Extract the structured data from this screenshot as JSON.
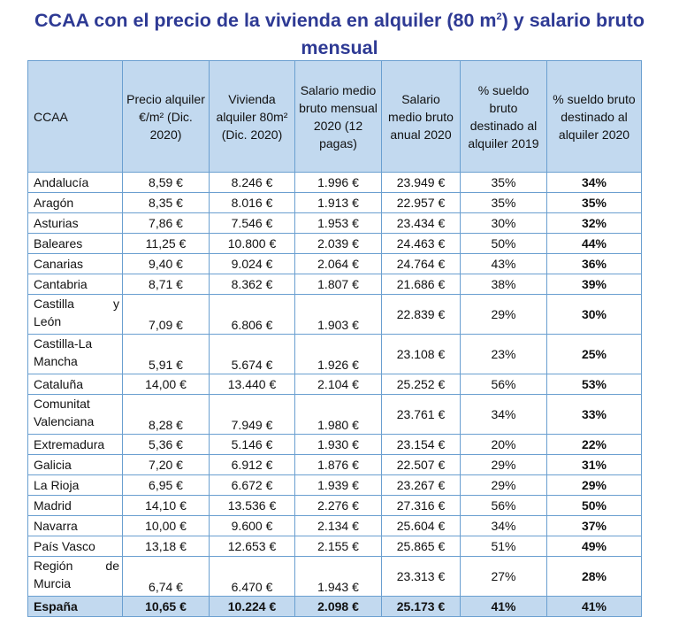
{
  "title": {
    "part1": "CCAA con el precio de la vivienda en alquiler (80 m",
    "sup": "2",
    "part2": ") y salario bruto mensual"
  },
  "table": {
    "headers": [
      "CCAA",
      "Precio alquiler €/m² (Dic. 2020)",
      "Vivienda alquiler 80m² (Dic. 2020)",
      "Salario medio bruto mensual 2020 (12 pagas)",
      "Salario medio bruto anual 2020",
      "% sueldo bruto destinado al alquiler 2019",
      "% sueldo bruto destinado al alquiler 2020"
    ],
    "rows": [
      {
        "ccaa": "Andalucía",
        "precio": "8,59 €",
        "vivienda": "8.246 €",
        "mensual": "1.996 €",
        "anual": "23.949 €",
        "p2019": "35%",
        "p2020": "34%"
      },
      {
        "ccaa": "Aragón",
        "precio": "8,35 €",
        "vivienda": "8.016 €",
        "mensual": "1.913 €",
        "anual": "22.957 €",
        "p2019": "35%",
        "p2020": "35%"
      },
      {
        "ccaa": "Asturias",
        "precio": "7,86 €",
        "vivienda": "7.546 €",
        "mensual": "1.953 €",
        "anual": "23.434 €",
        "p2019": "30%",
        "p2020": "32%"
      },
      {
        "ccaa": "Baleares",
        "precio": "11,25 €",
        "vivienda": "10.800 €",
        "mensual": "2.039 €",
        "anual": "24.463 €",
        "p2019": "50%",
        "p2020": "44%"
      },
      {
        "ccaa": "Canarias",
        "precio": "9,40 €",
        "vivienda": "9.024 €",
        "mensual": "2.064 €",
        "anual": "24.764 €",
        "p2019": "43%",
        "p2020": "36%"
      },
      {
        "ccaa": "Cantabria",
        "precio": "8,71 €",
        "vivienda": "8.362 €",
        "mensual": "1.807 €",
        "anual": "21.686 €",
        "p2019": "38%",
        "p2020": "39%"
      },
      {
        "ccaa_l1a": "Castilla",
        "ccaa_l1b": "y",
        "ccaa_l2": "León",
        "precio": "7,09 €",
        "vivienda": "6.806 €",
        "mensual": "1.903 €",
        "anual": "22.839 €",
        "p2019": "29%",
        "p2020": "30%"
      },
      {
        "ccaa_l1": "Castilla-La",
        "ccaa_l2": "Mancha",
        "precio": "5,91 €",
        "vivienda": "5.674 €",
        "mensual": "1.926 €",
        "anual": "23.108 €",
        "p2019": "23%",
        "p2020": "25%"
      },
      {
        "ccaa": "Cataluña",
        "precio": "14,00 €",
        "vivienda": "13.440 €",
        "mensual": "2.104 €",
        "anual": "25.252 €",
        "p2019": "56%",
        "p2020": "53%"
      },
      {
        "ccaa_l1": "Comunitat",
        "ccaa_l2": "Valenciana",
        "precio": "8,28 €",
        "vivienda": "7.949 €",
        "mensual": "1.980 €",
        "anual": "23.761 €",
        "p2019": "34%",
        "p2020": "33%"
      },
      {
        "ccaa": "Extremadura",
        "precio": "5,36 €",
        "vivienda": "5.146 €",
        "mensual": "1.930 €",
        "anual": "23.154 €",
        "p2019": "20%",
        "p2020": "22%"
      },
      {
        "ccaa": "Galicia",
        "precio": "7,20 €",
        "vivienda": "6.912 €",
        "mensual": "1.876 €",
        "anual": "22.507 €",
        "p2019": "29%",
        "p2020": "31%"
      },
      {
        "ccaa": "La Rioja",
        "precio": "6,95 €",
        "vivienda": "6.672 €",
        "mensual": "1.939 €",
        "anual": "23.267 €",
        "p2019": "29%",
        "p2020": "29%"
      },
      {
        "ccaa": "Madrid",
        "precio": "14,10 €",
        "vivienda": "13.536 €",
        "mensual": "2.276 €",
        "anual": "27.316 €",
        "p2019": "56%",
        "p2020": "50%"
      },
      {
        "ccaa": "Navarra",
        "precio": "10,00 €",
        "vivienda": "9.600 €",
        "mensual": "2.134 €",
        "anual": "25.604 €",
        "p2019": "34%",
        "p2020": "37%"
      },
      {
        "ccaa": "País Vasco",
        "precio": "13,18 €",
        "vivienda": "12.653 €",
        "mensual": "2.155 €",
        "anual": "25.865 €",
        "p2019": "51%",
        "p2020": "49%"
      },
      {
        "ccaa_l1a": "Región",
        "ccaa_l1b": "de",
        "ccaa_l2": "Murcia",
        "precio": "6,74 €",
        "vivienda": "6.470 €",
        "mensual": "1.943 €",
        "anual": "23.313 €",
        "p2019": "27%",
        "p2020": "28%"
      }
    ],
    "total": {
      "ccaa": "España",
      "precio": "10,65 €",
      "vivienda": "10.224 €",
      "mensual": "2.098 €",
      "anual": "25.173 €",
      "p2019": "41%",
      "p2020": "41%"
    }
  }
}
